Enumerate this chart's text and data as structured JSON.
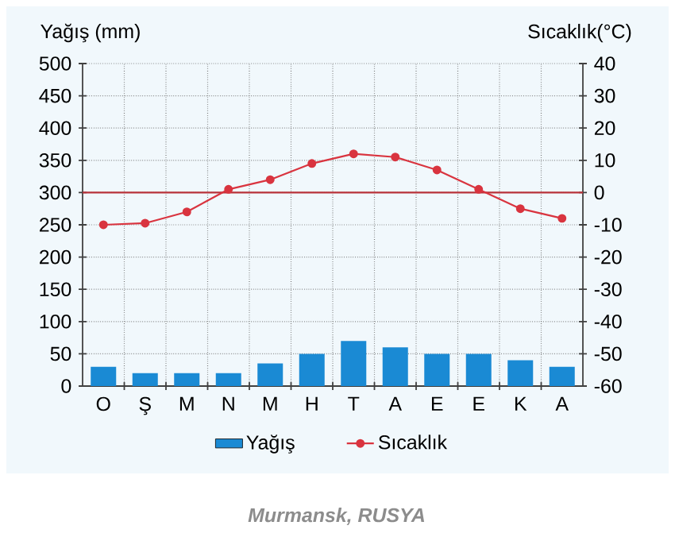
{
  "chart_data": {
    "type": "bar",
    "ylabel": "Yağış (mm)",
    "y2label": "Sıcaklık(°C)",
    "categories": [
      "O",
      "Ş",
      "M",
      "N",
      "M",
      "H",
      "T",
      "A",
      "E",
      "E",
      "K",
      "A"
    ],
    "series": [
      {
        "name": "Yağış",
        "color": "#1a8ad4",
        "values": [
          30,
          20,
          20,
          20,
          35,
          50,
          70,
          60,
          50,
          50,
          40,
          30
        ]
      },
      {
        "name": "Sıcaklık",
        "type": "line",
        "axis": "y2",
        "color": "#d9343f",
        "marker": "circle",
        "values": [
          -10,
          -9.5,
          -6,
          1,
          4,
          9,
          12,
          11,
          7,
          1,
          -5,
          -8
        ]
      }
    ],
    "ylim": [
      0,
      500
    ],
    "yticks": [
      0,
      50,
      100,
      150,
      200,
      250,
      300,
      350,
      400,
      450,
      500
    ],
    "y2lim": [
      -60,
      40
    ],
    "y2ticks": [
      -60,
      -50,
      -40,
      -30,
      -20,
      -10,
      0,
      10,
      20,
      30,
      40
    ],
    "ref_lines": [
      {
        "axis": "y2",
        "value": 0,
        "color": "#b8333a"
      }
    ],
    "grid": true,
    "legend": "bottom",
    "annotations": [
      "Murmansk, RUSYA"
    ]
  }
}
